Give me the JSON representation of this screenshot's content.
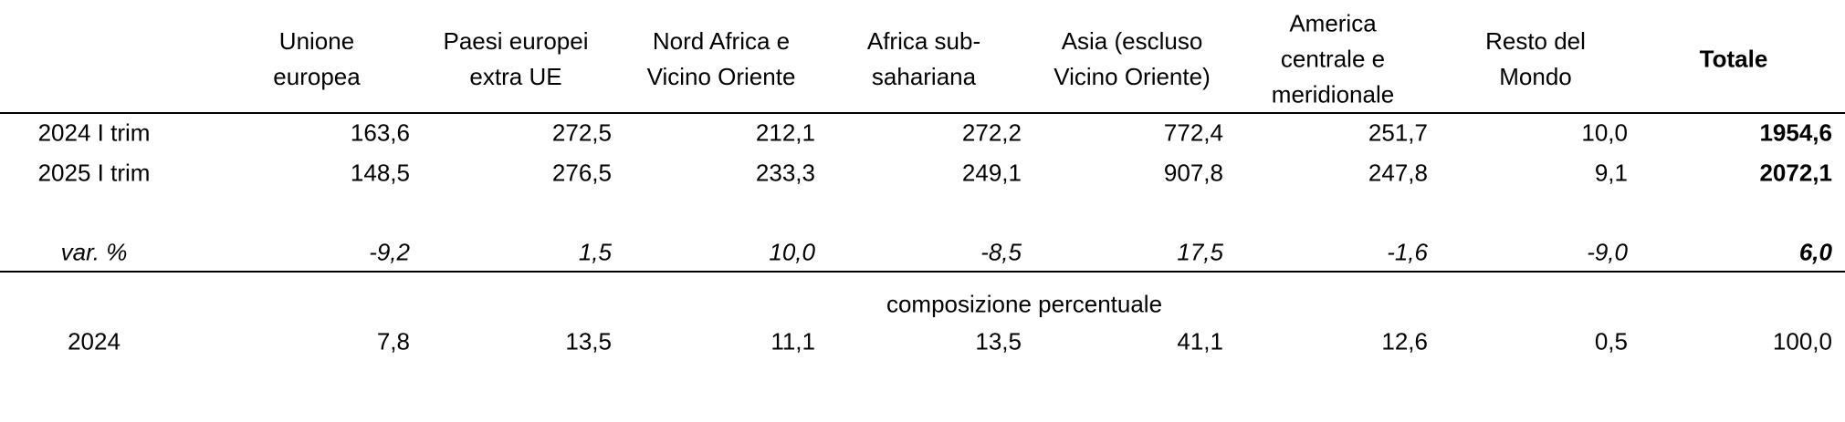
{
  "header": {
    "columns": [
      "Unione\neuropea",
      "Paesi europei\nextra UE",
      "Nord Africa e\nVicino Oriente",
      "Africa sub-\nsahariana",
      "Asia (escluso\nVicino Oriente)",
      "America\ncentrale e\nmeridionale",
      "Resto del\nMondo",
      "Totale"
    ]
  },
  "rows": [
    {
      "label": "2024 I trim",
      "values": [
        "163,6",
        "272,5",
        "212,1",
        "272,2",
        "772,4",
        "251,7",
        "10,0",
        "1954,6"
      ]
    },
    {
      "label": "2025 I trim",
      "values": [
        "148,5",
        "276,5",
        "233,3",
        "249,1",
        "907,8",
        "247,8",
        "9,1",
        "2072,1"
      ]
    },
    {
      "label": "var. %",
      "values": [
        "-9,2",
        "1,5",
        "10,0",
        "-8,5",
        "17,5",
        "-1,6",
        "-9,0",
        "6,0"
      ]
    }
  ],
  "section_label": "composizione percentuale",
  "composition_rows": [
    {
      "label": "2024",
      "values": [
        "7,8",
        "13,5",
        "11,1",
        "13,5",
        "41,1",
        "12,6",
        "0,5",
        "100,0"
      ]
    }
  ]
}
